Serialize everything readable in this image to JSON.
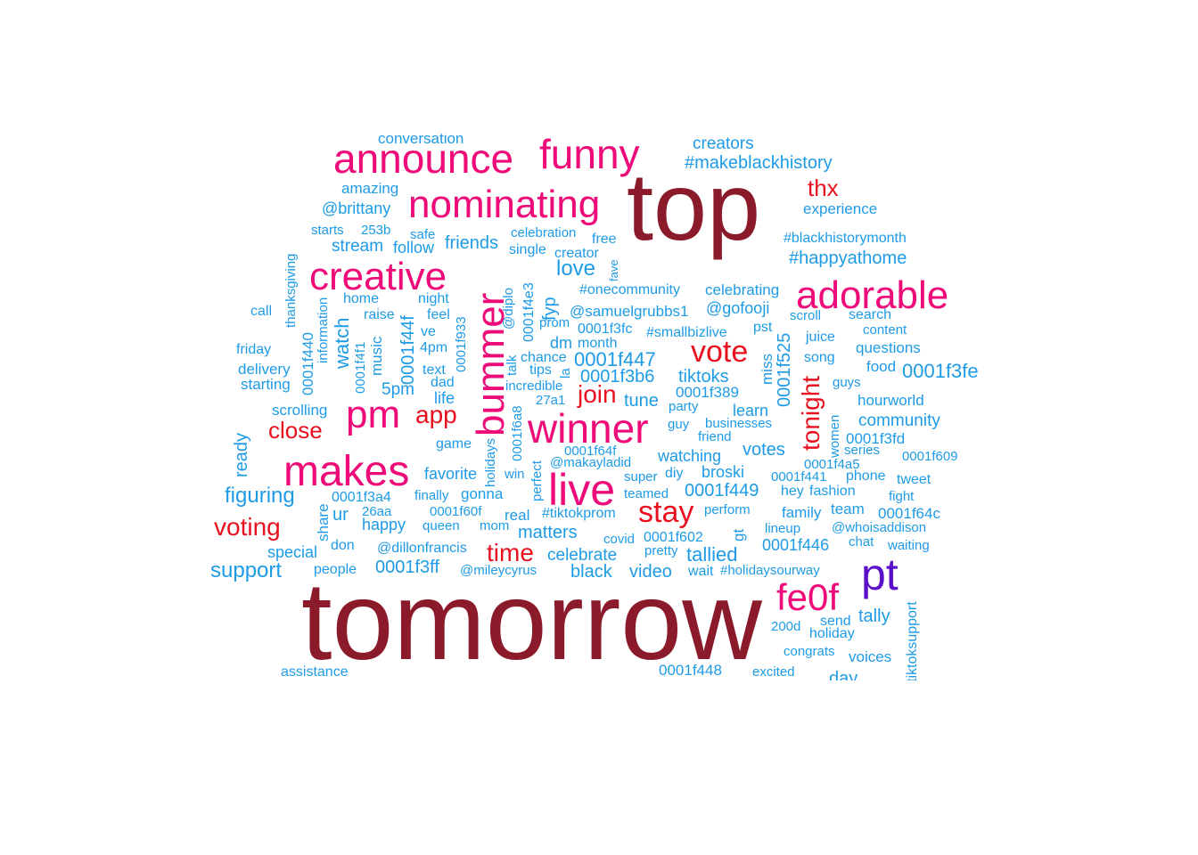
{
  "palette": {
    "dark_red": "#8b1a2a",
    "crimson": "#e8101e",
    "magenta": "#ee0a78",
    "purple": "#5a10c8",
    "blue": "#1e9be6"
  },
  "words": [
    {
      "text": "top",
      "size": 108,
      "color": "dark_red"
    },
    {
      "text": "tomorrow",
      "size": 124,
      "color": "dark_red"
    },
    {
      "text": "announce",
      "size": 46,
      "color": "magenta"
    },
    {
      "text": "funny",
      "size": 46,
      "color": "magenta"
    },
    {
      "text": "nominating",
      "size": 44,
      "color": "magenta"
    },
    {
      "text": "creative",
      "size": 44,
      "color": "magenta"
    },
    {
      "text": "adorable",
      "size": 44,
      "color": "magenta"
    },
    {
      "text": "bummer",
      "size": 44,
      "color": "magenta",
      "rot": -90
    },
    {
      "text": "pm",
      "size": 44,
      "color": "magenta"
    },
    {
      "text": "winner",
      "size": 46,
      "color": "magenta"
    },
    {
      "text": "makes",
      "size": 48,
      "color": "magenta"
    },
    {
      "text": "live",
      "size": 50,
      "color": "magenta"
    },
    {
      "text": "fe0f",
      "size": 42,
      "color": "magenta"
    },
    {
      "text": "pt",
      "size": 50,
      "color": "purple"
    },
    {
      "text": "vote",
      "size": 34,
      "color": "crimson"
    },
    {
      "text": "stay",
      "size": 34,
      "color": "crimson"
    },
    {
      "text": "app",
      "size": 28,
      "color": "crimson"
    },
    {
      "text": "join",
      "size": 28,
      "color": "crimson"
    },
    {
      "text": "close",
      "size": 26,
      "color": "crimson"
    },
    {
      "text": "voting",
      "size": 28,
      "color": "crimson"
    },
    {
      "text": "time",
      "size": 28,
      "color": "crimson"
    },
    {
      "text": "thx",
      "size": 26,
      "color": "crimson"
    },
    {
      "text": "tonight",
      "size": 28,
      "color": "crimson",
      "rot": -90
    },
    {
      "text": "conversation",
      "size": 17,
      "color": "blue"
    },
    {
      "text": "creators",
      "size": 19,
      "color": "blue"
    },
    {
      "text": "#makeblackhistory",
      "size": 20,
      "color": "blue"
    },
    {
      "text": "amazing",
      "size": 17,
      "color": "blue"
    },
    {
      "text": "@brittany",
      "size": 18,
      "color": "blue"
    },
    {
      "text": "experience",
      "size": 17,
      "color": "blue"
    },
    {
      "text": "starts",
      "size": 15,
      "color": "blue"
    },
    {
      "text": "253b",
      "size": 15,
      "color": "blue"
    },
    {
      "text": "safe",
      "size": 15,
      "color": "blue"
    },
    {
      "text": "celebration",
      "size": 15,
      "color": "blue"
    },
    {
      "text": "free",
      "size": 16,
      "color": "blue"
    },
    {
      "text": "#blackhistorymonth",
      "size": 16,
      "color": "blue"
    },
    {
      "text": "stream",
      "size": 19,
      "color": "blue"
    },
    {
      "text": "follow",
      "size": 18,
      "color": "blue"
    },
    {
      "text": "friends",
      "size": 20,
      "color": "blue"
    },
    {
      "text": "single",
      "size": 16,
      "color": "blue"
    },
    {
      "text": "creator",
      "size": 16,
      "color": "blue"
    },
    {
      "text": "#happyathome",
      "size": 20,
      "color": "blue"
    },
    {
      "text": "thanksgiving",
      "size": 15,
      "color": "blue",
      "rot": -90
    },
    {
      "text": "love",
      "size": 24,
      "color": "blue"
    },
    {
      "text": "fave",
      "size": 13,
      "color": "blue",
      "rot": -90
    },
    {
      "text": "#onecommunity",
      "size": 16,
      "color": "blue"
    },
    {
      "text": "celebrating",
      "size": 17,
      "color": "blue"
    },
    {
      "text": "home",
      "size": 16,
      "color": "blue"
    },
    {
      "text": "night",
      "size": 16,
      "color": "blue"
    },
    {
      "text": "diplo",
      "size": 15,
      "color": "blue",
      "rot": -90,
      "label": "@diplo"
    },
    {
      "text": "0001f4e3",
      "size": 16,
      "color": "blue",
      "rot": -90
    },
    {
      "text": "fyp",
      "size": 20,
      "color": "blue",
      "rot": -90
    },
    {
      "text": "@samuelgrubbs1",
      "size": 17,
      "color": "blue"
    },
    {
      "text": "@gofooji",
      "size": 18,
      "color": "blue"
    },
    {
      "text": "call",
      "size": 16,
      "color": "blue"
    },
    {
      "text": "raise",
      "size": 16,
      "color": "blue"
    },
    {
      "text": "feel",
      "size": 16,
      "color": "blue"
    },
    {
      "text": "ve",
      "size": 16,
      "color": "blue"
    },
    {
      "text": "prom",
      "size": 15,
      "color": "blue"
    },
    {
      "text": "0001f3fc",
      "size": 16,
      "color": "blue"
    },
    {
      "text": "#smallbizlive",
      "size": 16,
      "color": "blue"
    },
    {
      "text": "pst",
      "size": 16,
      "color": "blue"
    },
    {
      "text": "scroll",
      "size": 15,
      "color": "blue"
    },
    {
      "text": "search",
      "size": 16,
      "color": "blue"
    },
    {
      "text": "content",
      "size": 15,
      "color": "blue"
    },
    {
      "text": "juice",
      "size": 16,
      "color": "blue"
    },
    {
      "text": "questions",
      "size": 17,
      "color": "blue"
    },
    {
      "text": "friday",
      "size": 16,
      "color": "blue"
    },
    {
      "text": "0001f440",
      "size": 17,
      "color": "blue",
      "rot": -90
    },
    {
      "text": "information",
      "size": 15,
      "color": "blue",
      "rot": -90
    },
    {
      "text": "watch",
      "size": 22,
      "color": "blue",
      "rot": -90
    },
    {
      "text": "0001f4f1",
      "size": 15,
      "color": "blue",
      "rot": -90
    },
    {
      "text": "music",
      "size": 17,
      "color": "blue",
      "rot": -90
    },
    {
      "text": "0001f44f",
      "size": 20,
      "color": "blue",
      "rot": -90
    },
    {
      "text": "4pm",
      "size": 16,
      "color": "blue"
    },
    {
      "text": "0001f933",
      "size": 15,
      "color": "blue",
      "rot": -90
    },
    {
      "text": "talk",
      "size": 15,
      "color": "blue",
      "rot": -90
    },
    {
      "text": "chance",
      "size": 16,
      "color": "blue"
    },
    {
      "text": "dm",
      "size": 18,
      "color": "blue"
    },
    {
      "text": "month",
      "size": 16,
      "color": "blue"
    },
    {
      "text": "0001f447",
      "size": 22,
      "color": "blue"
    },
    {
      "text": "miss",
      "size": 17,
      "color": "blue",
      "rot": -90
    },
    {
      "text": "0001f525",
      "size": 20,
      "color": "blue",
      "rot": -90
    },
    {
      "text": "song",
      "size": 16,
      "color": "blue"
    },
    {
      "text": "food",
      "size": 17,
      "color": "blue"
    },
    {
      "text": "0001f3fe",
      "size": 22,
      "color": "blue"
    },
    {
      "text": "delivery",
      "size": 17,
      "color": "blue"
    },
    {
      "text": "text",
      "size": 16,
      "color": "blue"
    },
    {
      "text": "tips",
      "size": 16,
      "color": "blue"
    },
    {
      "text": "la",
      "size": 15,
      "color": "blue",
      "rot": -90
    },
    {
      "text": "0001f3b6",
      "size": 20,
      "color": "blue"
    },
    {
      "text": "tiktoks",
      "size": 20,
      "color": "blue"
    },
    {
      "text": "starting",
      "size": 17,
      "color": "blue"
    },
    {
      "text": "dad",
      "size": 16,
      "color": "blue"
    },
    {
      "text": "incredible",
      "size": 15,
      "color": "blue"
    },
    {
      "text": "guys",
      "size": 15,
      "color": "blue"
    },
    {
      "text": "5pm",
      "size": 19,
      "color": "blue"
    },
    {
      "text": "life",
      "size": 18,
      "color": "blue"
    },
    {
      "text": "27a1",
      "size": 15,
      "color": "blue"
    },
    {
      "text": "tune",
      "size": 20,
      "color": "blue"
    },
    {
      "text": "0001f389",
      "size": 17,
      "color": "blue"
    },
    {
      "text": "party",
      "size": 15,
      "color": "blue"
    },
    {
      "text": "hourworld",
      "size": 17,
      "color": "blue"
    },
    {
      "text": "scrolling",
      "size": 17,
      "color": "blue"
    },
    {
      "text": "0001f6a8",
      "size": 15,
      "color": "blue",
      "rot": -90
    },
    {
      "text": "learn",
      "size": 18,
      "color": "blue"
    },
    {
      "text": "businesses",
      "size": 15,
      "color": "blue"
    },
    {
      "text": "community",
      "size": 19,
      "color": "blue"
    },
    {
      "text": "guy",
      "size": 15,
      "color": "blue"
    },
    {
      "text": "women",
      "size": 15,
      "color": "blue",
      "rot": -90
    },
    {
      "text": "friend",
      "size": 15,
      "color": "blue"
    },
    {
      "text": "0001f3fd",
      "size": 17,
      "color": "blue"
    },
    {
      "text": "ready",
      "size": 20,
      "color": "blue",
      "rot": -90
    },
    {
      "text": "holidays",
      "size": 15,
      "color": "blue",
      "rot": -90
    },
    {
      "text": "game",
      "size": 16,
      "color": "blue"
    },
    {
      "text": "0001f64f",
      "size": 15,
      "color": "blue"
    },
    {
      "text": "votes",
      "size": 20,
      "color": "blue"
    },
    {
      "text": "series",
      "size": 15,
      "color": "blue"
    },
    {
      "text": "watching",
      "size": 18,
      "color": "blue"
    },
    {
      "text": "0001f609",
      "size": 15,
      "color": "blue"
    },
    {
      "text": "0001f4a5",
      "size": 15,
      "color": "blue"
    },
    {
      "text": "perfect",
      "size": 15,
      "color": "blue",
      "rot": -90
    },
    {
      "text": "favorite",
      "size": 18,
      "color": "blue"
    },
    {
      "text": "win",
      "size": 15,
      "color": "blue"
    },
    {
      "text": "@makayladid",
      "size": 15,
      "color": "blue"
    },
    {
      "text": "diy",
      "size": 16,
      "color": "blue"
    },
    {
      "text": "broski",
      "size": 18,
      "color": "blue"
    },
    {
      "text": "super",
      "size": 15,
      "color": "blue"
    },
    {
      "text": "0001f441",
      "size": 15,
      "color": "blue"
    },
    {
      "text": "phone",
      "size": 16,
      "color": "blue"
    },
    {
      "text": "tweet",
      "size": 16,
      "color": "blue"
    },
    {
      "text": "figuring",
      "size": 24,
      "color": "blue"
    },
    {
      "text": "finally",
      "size": 15,
      "color": "blue"
    },
    {
      "text": "gonna",
      "size": 17,
      "color": "blue"
    },
    {
      "text": "teamed",
      "size": 15,
      "color": "blue"
    },
    {
      "text": "0001f449",
      "size": 20,
      "color": "blue"
    },
    {
      "text": "hey",
      "size": 16,
      "color": "blue"
    },
    {
      "text": "fashion",
      "size": 16,
      "color": "blue"
    },
    {
      "text": "fight",
      "size": 15,
      "color": "blue"
    },
    {
      "text": "share",
      "size": 17,
      "color": "blue",
      "rot": -90
    },
    {
      "text": "0001f3a4",
      "size": 16,
      "color": "blue"
    },
    {
      "text": "ur",
      "size": 20,
      "color": "blue"
    },
    {
      "text": "26aa",
      "size": 15,
      "color": "blue"
    },
    {
      "text": "0001f60f",
      "size": 15,
      "color": "blue"
    },
    {
      "text": "real",
      "size": 17,
      "color": "blue"
    },
    {
      "text": "#tiktokprom",
      "size": 16,
      "color": "blue"
    },
    {
      "text": "perform",
      "size": 15,
      "color": "blue"
    },
    {
      "text": "family",
      "size": 17,
      "color": "blue"
    },
    {
      "text": "team",
      "size": 17,
      "color": "blue"
    },
    {
      "text": "0001f64c",
      "size": 17,
      "color": "blue"
    },
    {
      "text": "happy",
      "size": 18,
      "color": "blue"
    },
    {
      "text": "queen",
      "size": 15,
      "color": "blue"
    },
    {
      "text": "mom",
      "size": 15,
      "color": "blue"
    },
    {
      "text": "matters",
      "size": 20,
      "color": "blue"
    },
    {
      "text": "gt",
      "size": 17,
      "color": "blue",
      "rot": -90
    },
    {
      "text": "lineup",
      "size": 15,
      "color": "blue"
    },
    {
      "text": "@whoisaddison",
      "size": 15,
      "color": "blue"
    },
    {
      "text": "special",
      "size": 18,
      "color": "blue"
    },
    {
      "text": "don",
      "size": 16,
      "color": "blue"
    },
    {
      "text": "@dillonfrancis",
      "size": 16,
      "color": "blue"
    },
    {
      "text": "covid",
      "size": 15,
      "color": "blue"
    },
    {
      "text": "0001f602",
      "size": 16,
      "color": "blue"
    },
    {
      "text": "pretty",
      "size": 15,
      "color": "blue"
    },
    {
      "text": "0001f446",
      "size": 18,
      "color": "blue"
    },
    {
      "text": "chat",
      "size": 15,
      "color": "blue"
    },
    {
      "text": "waiting",
      "size": 15,
      "color": "blue"
    },
    {
      "text": "celebrate",
      "size": 19,
      "color": "blue"
    },
    {
      "text": "tallied",
      "size": 22,
      "color": "blue"
    },
    {
      "text": "support",
      "size": 24,
      "color": "blue"
    },
    {
      "text": "people",
      "size": 16,
      "color": "blue"
    },
    {
      "text": "0001f3ff",
      "size": 20,
      "color": "blue"
    },
    {
      "text": "@mileycyrus",
      "size": 15,
      "color": "blue"
    },
    {
      "text": "black",
      "size": 20,
      "color": "blue"
    },
    {
      "text": "video",
      "size": 20,
      "color": "blue"
    },
    {
      "text": "wait",
      "size": 16,
      "color": "blue"
    },
    {
      "text": "#holidaysourway",
      "size": 15,
      "color": "blue"
    },
    {
      "text": "tiktoksupport",
      "size": 16,
      "color": "blue",
      "rot": -90
    },
    {
      "text": "tally",
      "size": 20,
      "color": "blue"
    },
    {
      "text": "send",
      "size": 16,
      "color": "blue"
    },
    {
      "text": "200d",
      "size": 15,
      "color": "blue"
    },
    {
      "text": "holiday",
      "size": 16,
      "color": "blue"
    },
    {
      "text": "congrats",
      "size": 15,
      "color": "blue"
    },
    {
      "text": "voices",
      "size": 17,
      "color": "blue"
    },
    {
      "text": "assistance",
      "size": 16,
      "color": "blue"
    },
    {
      "text": "0001f448",
      "size": 17,
      "color": "blue"
    },
    {
      "text": "excited",
      "size": 15,
      "color": "blue"
    },
    {
      "text": "day",
      "size": 20,
      "color": "blue"
    }
  ]
}
